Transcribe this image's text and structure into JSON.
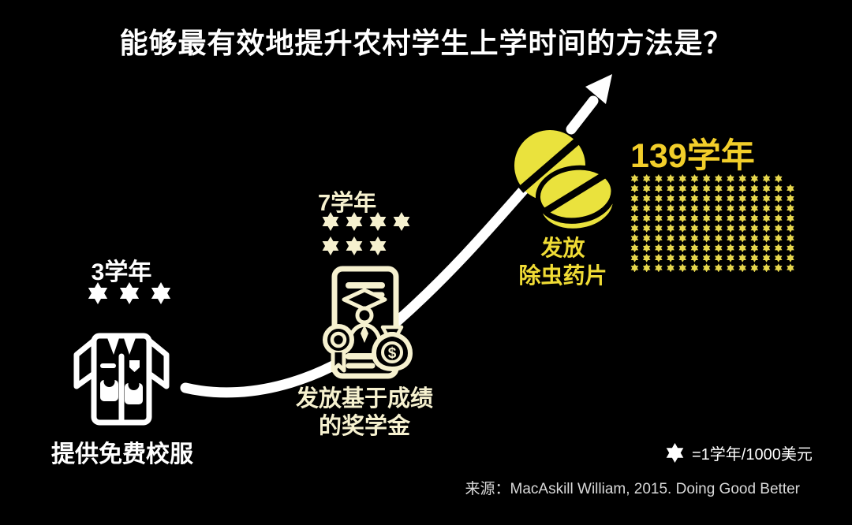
{
  "title": "能够最有效地提升农村学生上学时间的方法是？",
  "methods": [
    {
      "name": "free-uniforms",
      "value_label": "3学年",
      "label": "提供免费校服",
      "icon": "shirt-icon",
      "color": "#FFFFFF",
      "stars": {
        "count": 3
      }
    },
    {
      "name": "merit-scholarships",
      "value_label": "7学年",
      "label_line1": "发放基于成绩",
      "label_line2": "的奖学金",
      "icon": "scholarship-certificate-icon",
      "color": "#F6F1CF",
      "stars": {
        "count": 7
      }
    },
    {
      "name": "deworming-pills",
      "value_label": "139学年",
      "label_line1": "发放",
      "label_line2": "除虫药片",
      "icon": "pills-icon",
      "color": "#F2CE2A",
      "stars": {
        "count": 139,
        "cells": 140,
        "empty": [
          13
        ]
      }
    }
  ],
  "legend": {
    "icon": "six-pointed-star-icon",
    "text": "=1学年/1000美元"
  },
  "source": "来源：MacAskill William, 2015. Doing Good Better",
  "colors": {
    "background": "#000000",
    "white": "#FFFFFF",
    "cream": "#F6F1CF",
    "pill_yellow": "#EAE23D",
    "gold": "#F2CE2A",
    "grid_star_yellow": "#E7D74D",
    "label_yellow": "#F0DC35",
    "source_gray": "#D9D9D9"
  },
  "chart_data": {
    "type": "bar",
    "style": "pictogram",
    "title": "能够最有效地提升农村学生上学时间的方法是？",
    "categories": [
      "提供免费校服",
      "发放基于成绩的奖学金",
      "发放除虫药片"
    ],
    "values": [
      3,
      7,
      139
    ],
    "value_labels": [
      "3学年",
      "7学年",
      "139学年"
    ],
    "unit": "1个星形 = 1学年 / 1000美元",
    "legend": "=1学年/1000美元",
    "source": "来源：MacAskill William, 2015. Doing Good Better",
    "annotations": [
      "上升箭头表示效果递增"
    ]
  }
}
